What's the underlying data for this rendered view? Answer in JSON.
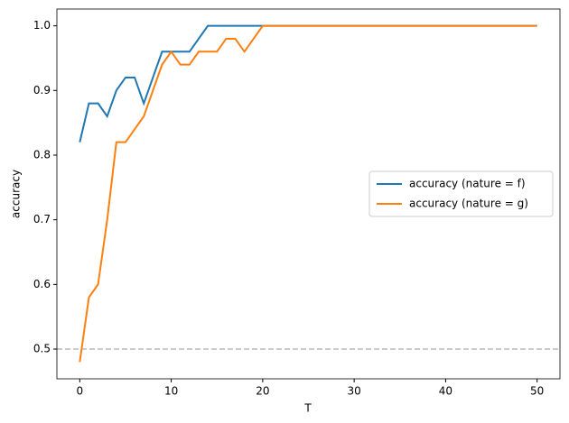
{
  "chart_data": {
    "type": "line",
    "xlabel": "T",
    "ylabel": "accuracy",
    "x": [
      0,
      1,
      2,
      3,
      4,
      5,
      6,
      7,
      8,
      9,
      10,
      11,
      12,
      13,
      14,
      15,
      16,
      17,
      18,
      19,
      20,
      21,
      22,
      23,
      24,
      25,
      26,
      27,
      28,
      29,
      30,
      31,
      32,
      33,
      34,
      35,
      36,
      37,
      38,
      39,
      40,
      41,
      42,
      43,
      44,
      45,
      46,
      47,
      48,
      49,
      50
    ],
    "series": [
      {
        "name": "accuracy (nature = f)",
        "color": "#1f77b4",
        "values": [
          0.82,
          0.88,
          0.88,
          0.86,
          0.9,
          0.92,
          0.92,
          0.88,
          0.92,
          0.96,
          0.96,
          0.96,
          0.96,
          0.98,
          1,
          1,
          1,
          1,
          1,
          1,
          1,
          1,
          1,
          1,
          1,
          1,
          1,
          1,
          1,
          1,
          1,
          1,
          1,
          1,
          1,
          1,
          1,
          1,
          1,
          1,
          1,
          1,
          1,
          1,
          1,
          1,
          1,
          1,
          1,
          1,
          1
        ]
      },
      {
        "name": "accuracy (nature = g)",
        "color": "#ff7f0e",
        "values": [
          0.48,
          0.58,
          0.6,
          0.7,
          0.82,
          0.82,
          0.84,
          0.86,
          0.9,
          0.94,
          0.96,
          0.94,
          0.94,
          0.96,
          0.96,
          0.96,
          0.98,
          0.98,
          0.96,
          0.98,
          1,
          1,
          1,
          1,
          1,
          1,
          1,
          1,
          1,
          1,
          1,
          1,
          1,
          1,
          1,
          1,
          1,
          1,
          1,
          1,
          1,
          1,
          1,
          1,
          1,
          1,
          1,
          1,
          1,
          1,
          1
        ]
      }
    ],
    "hline": {
      "value": 0.5,
      "color": "#bbbbbb"
    },
    "xlim": [
      -2.5,
      52.5
    ],
    "xticks": [
      0,
      10,
      20,
      30,
      40,
      50
    ],
    "ylim": [
      0.454,
      1.026
    ],
    "yticks": [
      0.5,
      0.6,
      0.7,
      0.8,
      0.9,
      {
        "value": 1.0,
        "label": "1.0"
      }
    ],
    "legend": "center right"
  }
}
